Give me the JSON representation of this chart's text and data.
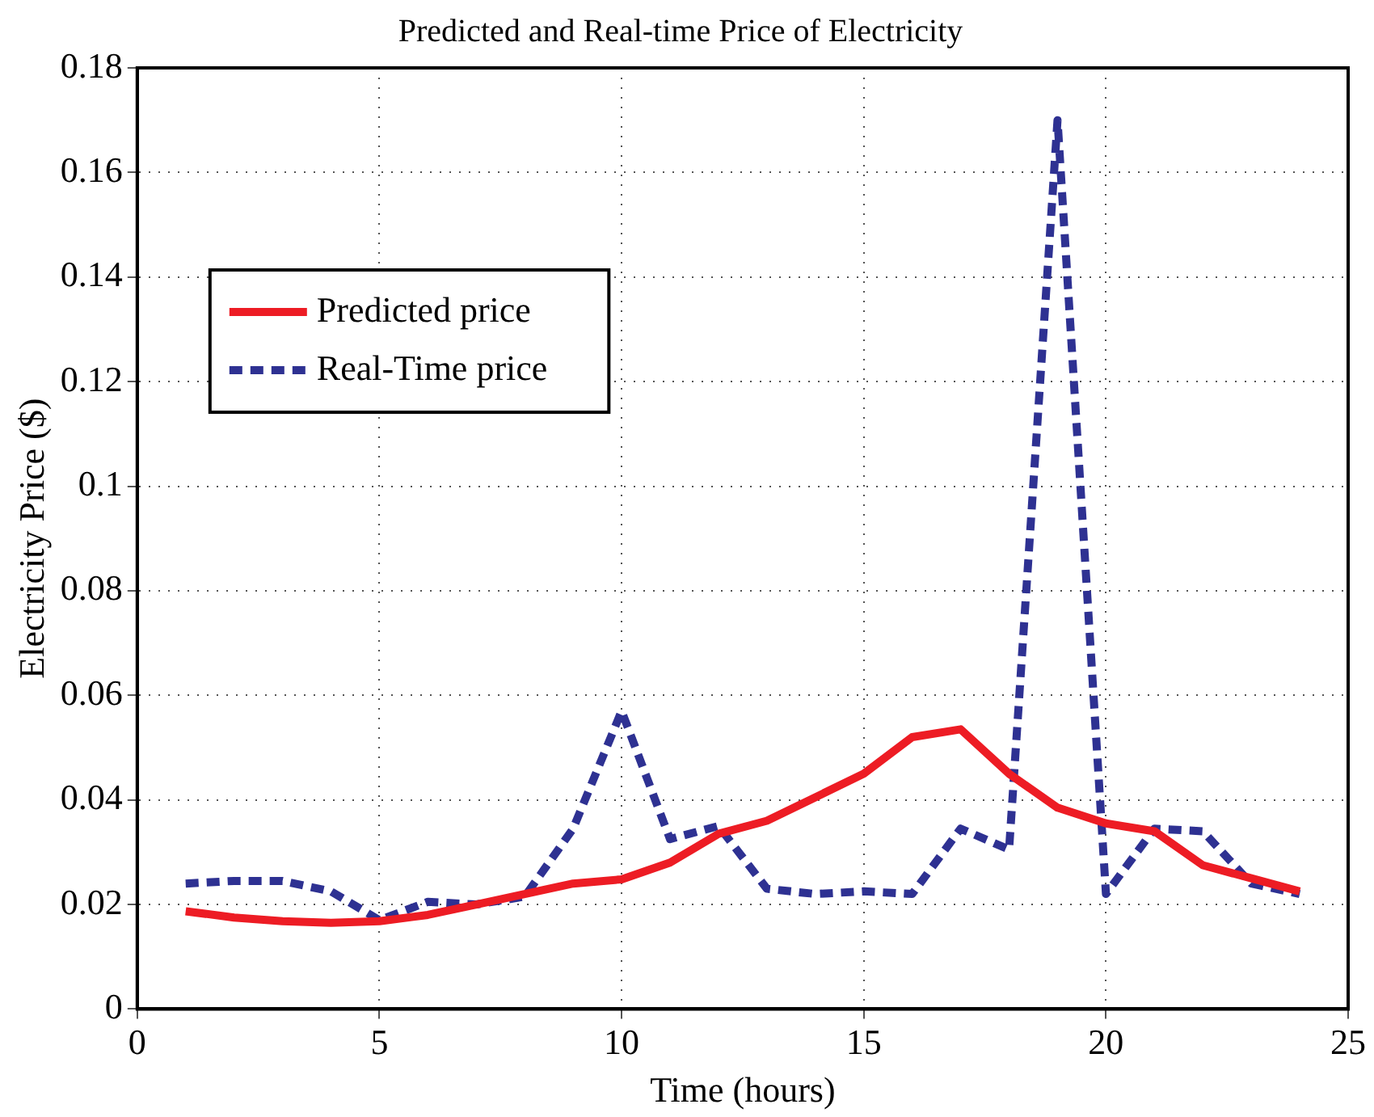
{
  "chart_data": {
    "type": "line",
    "title": "Predicted and Real-time Price of Electricity",
    "xlabel": "Time (hours)",
    "ylabel": "Electricity Price ($)",
    "x": [
      1,
      2,
      3,
      4,
      5,
      6,
      7,
      8,
      9,
      10,
      11,
      12,
      13,
      14,
      15,
      16,
      17,
      18,
      19,
      20,
      21,
      22,
      23,
      24
    ],
    "series": [
      {
        "name": "Predicted price",
        "color": "#ed1c24",
        "line_style": "solid",
        "values": [
          0.0187,
          0.0175,
          0.0168,
          0.0165,
          0.0168,
          0.018,
          0.02,
          0.022,
          0.024,
          0.0248,
          0.028,
          0.0335,
          0.036,
          0.0405,
          0.045,
          0.052,
          0.0535,
          0.045,
          0.0385,
          0.0355,
          0.034,
          0.0275,
          0.025,
          0.0225
        ]
      },
      {
        "name": "Real-Time price",
        "color": "#2e3192",
        "line_style": "dashed",
        "values": [
          0.024,
          0.0245,
          0.0245,
          0.0225,
          0.017,
          0.0205,
          0.02,
          0.0215,
          0.0345,
          0.057,
          0.0325,
          0.035,
          0.023,
          0.022,
          0.0225,
          0.022,
          0.0345,
          0.0305,
          0.17,
          0.022,
          0.0345,
          0.034,
          0.024,
          0.022
        ]
      }
    ],
    "xlim": [
      0,
      25
    ],
    "xticks": [
      0,
      5,
      10,
      15,
      20,
      25
    ],
    "ylim": [
      0,
      0.18
    ],
    "yticks": [
      0,
      0.02,
      0.04,
      0.06,
      0.08,
      0.1,
      0.12,
      0.14,
      0.16,
      0.18
    ],
    "grid": true,
    "legend": "top left",
    "marker": "none"
  }
}
